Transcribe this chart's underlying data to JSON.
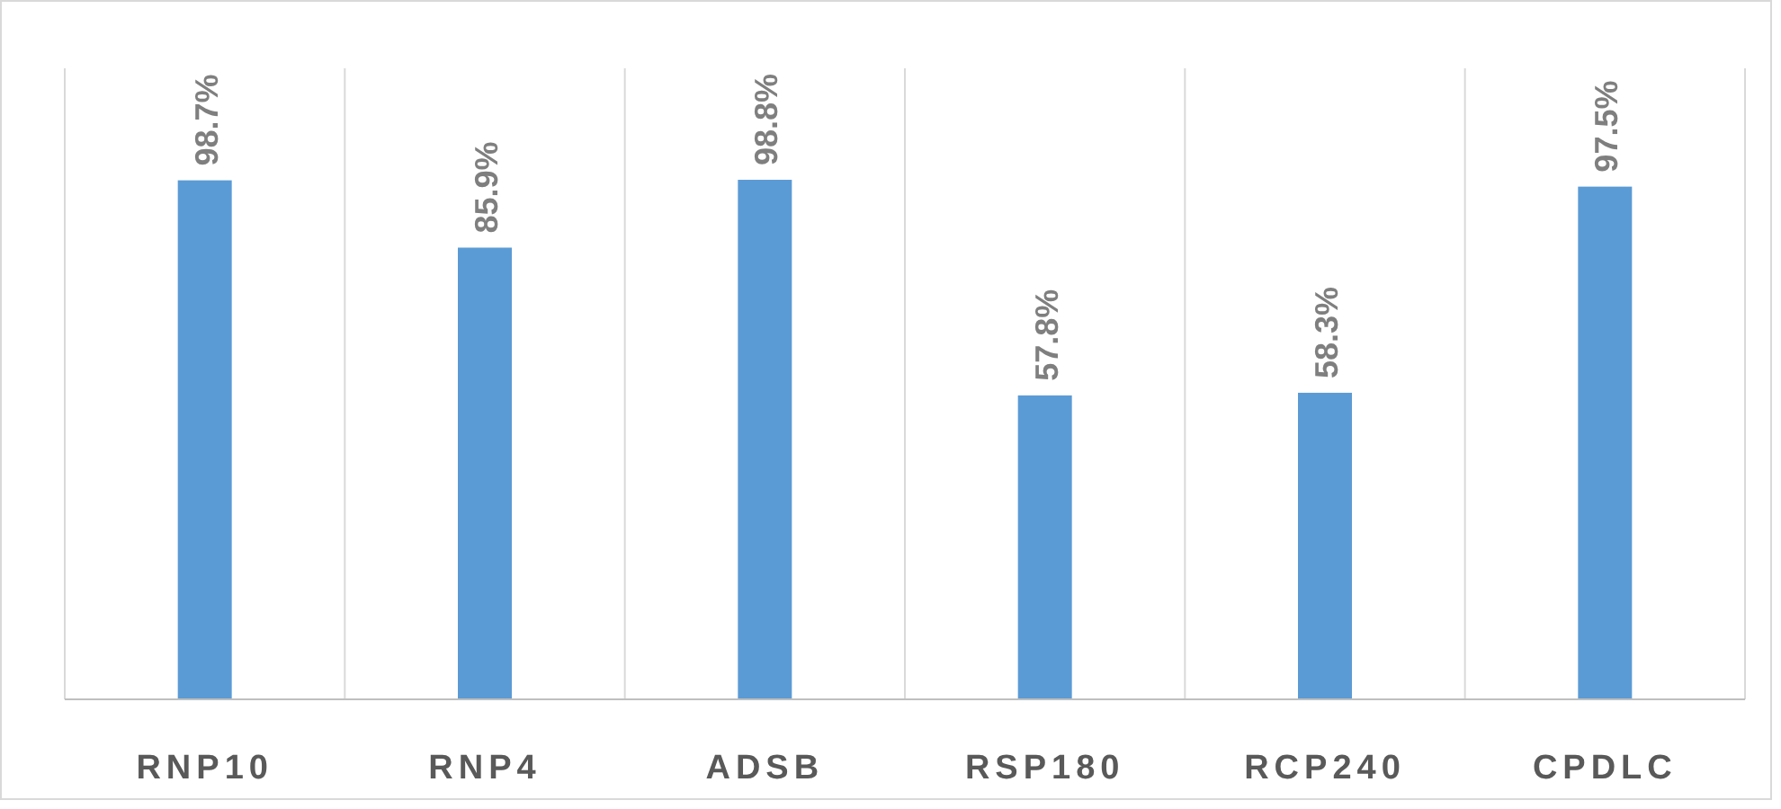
{
  "chart_data": {
    "type": "bar",
    "categories": [
      "RNP10",
      "RNP4",
      "ADSB",
      "RSP180",
      "RCP240",
      "CPDLC"
    ],
    "values": [
      98.7,
      85.9,
      98.8,
      57.8,
      58.3,
      97.5
    ],
    "value_labels": [
      "98.7%",
      "85.9%",
      "98.8%",
      "57.8%",
      "58.3%",
      "97.5%"
    ],
    "color": "#5b9bd5",
    "ylim": [
      0,
      120
    ],
    "tick_labels": "x",
    "grid": "x"
  }
}
